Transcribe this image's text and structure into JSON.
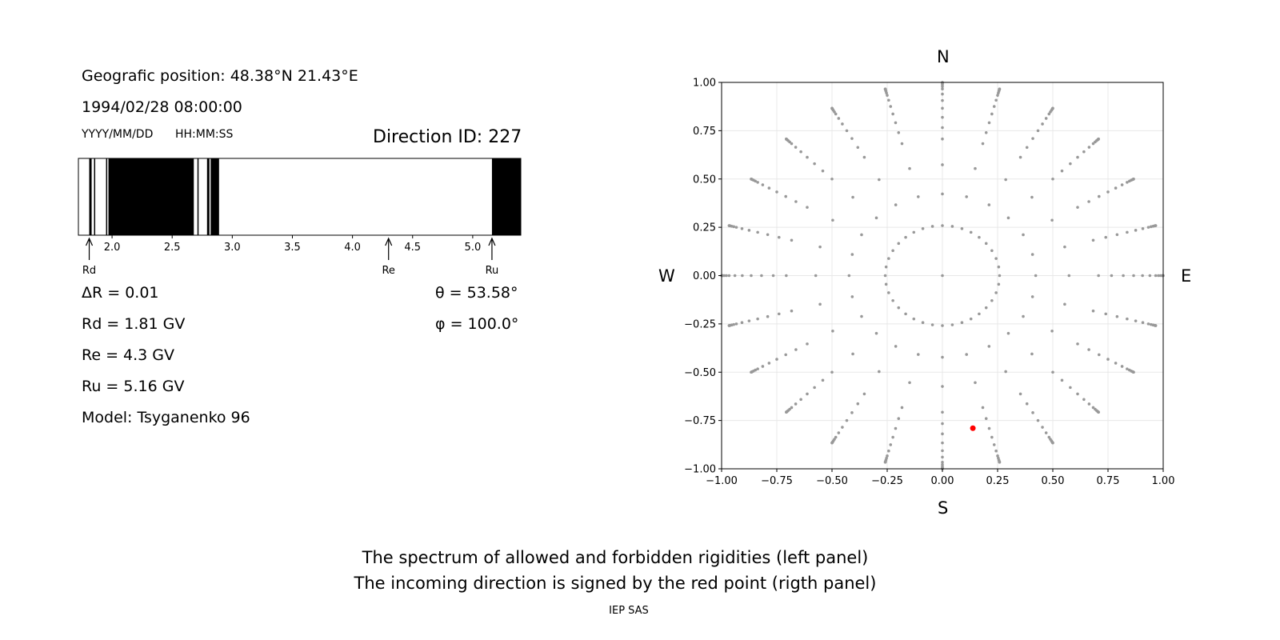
{
  "info": {
    "geo_position": "Geografic position: 48.38°N 21.43°E",
    "datetime": "1994/02/28 08:00:00",
    "date_format": "YYYY/MM/DD",
    "time_format": "HH:MM:SS",
    "direction_id": "Direction ID: 227",
    "delta_r": "ΔR = 0.01",
    "rd": "Rd = 1.81 GV",
    "re": "Re = 4.3 GV",
    "ru": "Ru = 5.16 GV",
    "model": "Model: Tsyganenko 96",
    "theta": "θ = 53.58°",
    "phi": "φ = 100.0°"
  },
  "compass": {
    "n": "N",
    "s": "S",
    "w": "W",
    "e": "E"
  },
  "caption": {
    "line1": "The spectrum of allowed and forbidden rigidities (left panel)",
    "line2": "The incoming direction is signed by the red point (rigth panel)",
    "credit": "IEP SAS"
  },
  "colors": {
    "forbidden": "#000000",
    "allowed": "#ffffff",
    "grid_point": "#999999",
    "direction_point": "#ff0000"
  },
  "chart_data": [
    {
      "type": "bar",
      "name": "rigidity-spectrum",
      "xlim": [
        1.72,
        5.4
      ],
      "xticks": [
        2.0,
        2.5,
        3.0,
        3.5,
        4.0,
        4.5,
        5.0
      ],
      "tick_labels": [
        "2.0",
        "2.5",
        "3.0",
        "3.5",
        "4.0",
        "4.5",
        "5.0"
      ],
      "forbidden_intervals": [
        [
          1.81,
          1.83
        ],
        [
          1.85,
          1.86
        ],
        [
          1.95,
          1.96
        ],
        [
          1.97,
          2.68
        ],
        [
          2.71,
          2.72
        ],
        [
          2.79,
          2.81
        ],
        [
          2.82,
          2.89
        ],
        [
          5.16,
          5.4
        ]
      ],
      "markers": [
        {
          "label": "Rd",
          "value": 1.81
        },
        {
          "label": "Re",
          "value": 4.3
        },
        {
          "label": "Ru",
          "value": 5.16
        }
      ]
    },
    {
      "type": "scatter",
      "name": "direction-grid",
      "xlim": [
        -1.0,
        1.0
      ],
      "ylim": [
        -1.0,
        1.0
      ],
      "grid": true,
      "xticks": [
        "−1.00",
        "−0.75",
        "−0.50",
        "−0.25",
        "0.00",
        "0.25",
        "0.50",
        "0.75",
        "1.00"
      ],
      "yticks": [
        "1.00",
        "0.75",
        "0.50",
        "0.25",
        "0.00",
        "−0.25",
        "−0.50",
        "−0.75",
        "−1.00"
      ],
      "tick_values": [
        -1.0,
        -0.75,
        -0.5,
        -0.25,
        0.0,
        0.25,
        0.5,
        0.75,
        1.0
      ],
      "zenith_rings_deg": [
        15,
        25,
        35,
        45,
        50,
        55,
        60,
        65,
        70,
        75,
        78,
        81,
        84,
        86,
        88,
        90
      ],
      "azimuth_step_deg": 15,
      "highlight": {
        "theta_deg": 53.58,
        "phi_deg": 100.0,
        "x": 0.138,
        "y": -0.79
      }
    }
  ]
}
